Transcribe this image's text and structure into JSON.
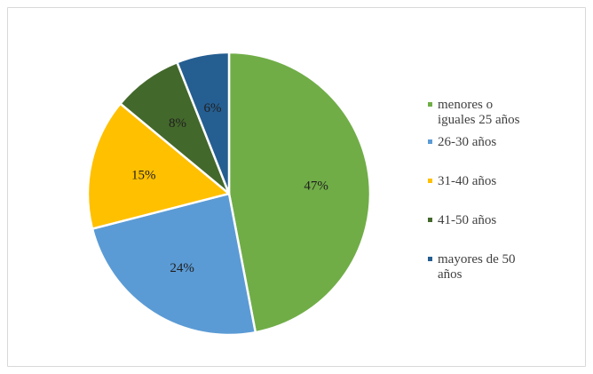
{
  "chart_data": {
    "type": "pie",
    "title": "",
    "categories": [
      "menores o iguales 25 años",
      "26-30 años",
      "31-40 años",
      "41-50 años",
      "mayores de 50 años"
    ],
    "values": [
      47,
      24,
      15,
      8,
      6
    ],
    "data_labels": [
      "47%",
      "24%",
      "15%",
      "8%",
      "6%"
    ],
    "legend_lines": [
      [
        "menores o",
        "iguales 25 años"
      ],
      [
        "26-30 años"
      ],
      [
        "31-40 años"
      ],
      [
        "41-50 años"
      ],
      [
        "mayores de 50",
        "años"
      ]
    ],
    "colors": [
      "#70ad47",
      "#5b9bd5",
      "#ffc000",
      "#43682b",
      "#255e91"
    ],
    "start_angle": "12 o'clock",
    "direction": "clockwise",
    "legend_position": "right"
  }
}
